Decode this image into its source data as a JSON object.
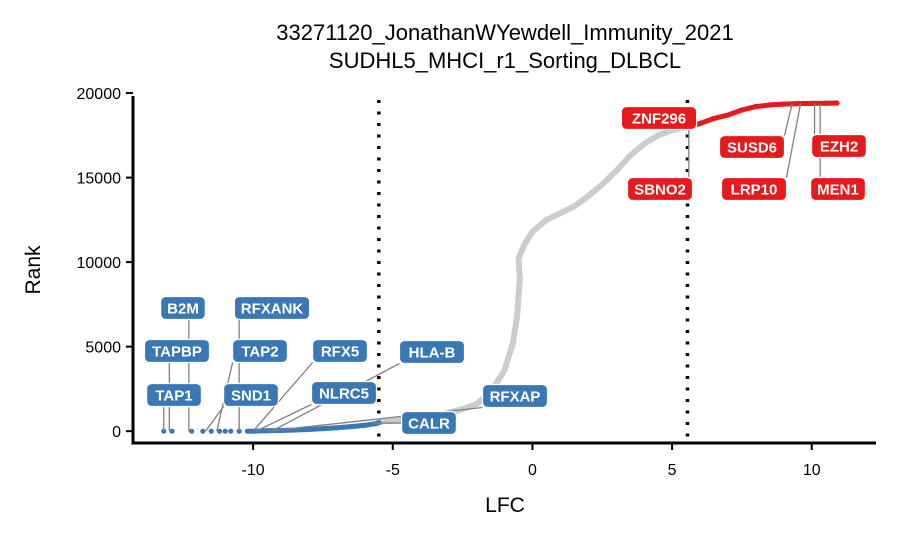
{
  "chart_data": {
    "type": "scatter",
    "title_line1": "33271120_JonathanWYewdell_Immunity_2021",
    "title_line2": "SUDHL5_MHCI_r1_Sorting_DLBCL",
    "xlabel": "LFC",
    "ylabel": "Rank",
    "xlim": [
      -14.3,
      12.3
    ],
    "ylim": [
      -700,
      20300
    ],
    "x_ticks": [
      -10,
      -5,
      0,
      5,
      10
    ],
    "x_tick_labels": [
      "-10",
      "-5",
      "0",
      "5",
      "10"
    ],
    "y_ticks": [
      0,
      5000,
      10000,
      15000,
      20000
    ],
    "y_tick_labels": [
      "0",
      "5000",
      "10000",
      "15000",
      "20000"
    ],
    "thresholds": [
      -5.5,
      5.55
    ],
    "colors": {
      "depleted": "#3a78b5",
      "enriched": "#e41a1c",
      "background": "#cccccc",
      "label_text": "#ffffff",
      "axis": "#000000"
    },
    "series": [
      {
        "role": "background",
        "points": [
          [
            -5.5,
            560
          ],
          [
            -4.5,
            700
          ],
          [
            -3.5,
            900
          ],
          [
            -2.5,
            1300
          ],
          [
            -2.0,
            1600
          ],
          [
            -1.5,
            2300
          ],
          [
            -1.0,
            3600
          ],
          [
            -0.7,
            5200
          ],
          [
            -0.55,
            6800
          ],
          [
            -0.5,
            8000
          ],
          [
            -0.45,
            9000
          ],
          [
            -0.5,
            10200
          ],
          [
            -0.3,
            11000
          ],
          [
            0.0,
            11800
          ],
          [
            0.5,
            12500
          ],
          [
            1.0,
            12900
          ],
          [
            1.5,
            13300
          ],
          [
            2.0,
            13900
          ],
          [
            2.5,
            14600
          ],
          [
            3.0,
            15400
          ],
          [
            3.5,
            16300
          ],
          [
            4.0,
            17000
          ],
          [
            4.5,
            17500
          ],
          [
            5.0,
            17800
          ],
          [
            5.55,
            18000
          ]
        ]
      },
      {
        "role": "depleted",
        "points": [
          [
            -13.2,
            0
          ],
          [
            -12.9,
            0
          ],
          [
            -12.2,
            0
          ],
          [
            -11.8,
            0
          ],
          [
            -11.5,
            0
          ],
          [
            -11.2,
            0
          ],
          [
            -11.0,
            0
          ],
          [
            -10.8,
            0
          ],
          [
            -10.5,
            0
          ],
          [
            -10.2,
            0
          ],
          [
            -10.0,
            0
          ],
          [
            -9.5,
            20
          ],
          [
            -9.0,
            40
          ],
          [
            -8.5,
            70
          ],
          [
            -8.0,
            100
          ],
          [
            -7.5,
            150
          ],
          [
            -7.0,
            200
          ],
          [
            -6.5,
            270
          ],
          [
            -6.0,
            350
          ],
          [
            -5.6,
            450
          ],
          [
            -5.5,
            500
          ]
        ]
      },
      {
        "role": "enriched",
        "points": [
          [
            5.6,
            18000
          ],
          [
            6.0,
            18200
          ],
          [
            6.5,
            18500
          ],
          [
            7.0,
            18700
          ],
          [
            7.5,
            19000
          ],
          [
            8.0,
            19200
          ],
          [
            8.5,
            19300
          ],
          [
            9.0,
            19350
          ],
          [
            9.5,
            19380
          ],
          [
            10.0,
            19390
          ],
          [
            10.5,
            19400
          ],
          [
            10.9,
            19410
          ]
        ]
      }
    ],
    "labels": [
      {
        "gene": "B2M",
        "group": "depleted",
        "x": -12.3,
        "y": 0
      },
      {
        "gene": "RFXANK",
        "group": "depleted",
        "x": -10.5,
        "y": 0
      },
      {
        "gene": "TAPBP",
        "group": "depleted",
        "x": -13.0,
        "y": 0
      },
      {
        "gene": "TAP2",
        "group": "depleted",
        "x": -11.3,
        "y": 0
      },
      {
        "gene": "RFX5",
        "group": "depleted",
        "x": -10.0,
        "y": 0
      },
      {
        "gene": "HLA-B",
        "group": "depleted",
        "x": -9.3,
        "y": 30
      },
      {
        "gene": "TAP1",
        "group": "depleted",
        "x": -13.2,
        "y": 0
      },
      {
        "gene": "SND1",
        "group": "depleted",
        "x": -11.7,
        "y": 0
      },
      {
        "gene": "NLRC5",
        "group": "depleted",
        "x": -9.9,
        "y": 0
      },
      {
        "gene": "RFXAP",
        "group": "depleted",
        "x": -9.5,
        "y": 0
      },
      {
        "gene": "CALR",
        "group": "depleted",
        "x": -5.7,
        "y": 480
      },
      {
        "gene": "ZNF296",
        "group": "enriched",
        "x": 5.7,
        "y": 18100
      },
      {
        "gene": "SUSD6",
        "group": "enriched",
        "x": 9.3,
        "y": 19380
      },
      {
        "gene": "EZH2",
        "group": "enriched",
        "x": 10.1,
        "y": 19400
      },
      {
        "gene": "SBNO2",
        "group": "enriched",
        "x": 5.6,
        "y": 18000
      },
      {
        "gene": "LRP10",
        "group": "enriched",
        "x": 9.6,
        "y": 19390
      },
      {
        "gene": "MEN1",
        "group": "enriched",
        "x": 10.3,
        "y": 19400
      }
    ]
  }
}
